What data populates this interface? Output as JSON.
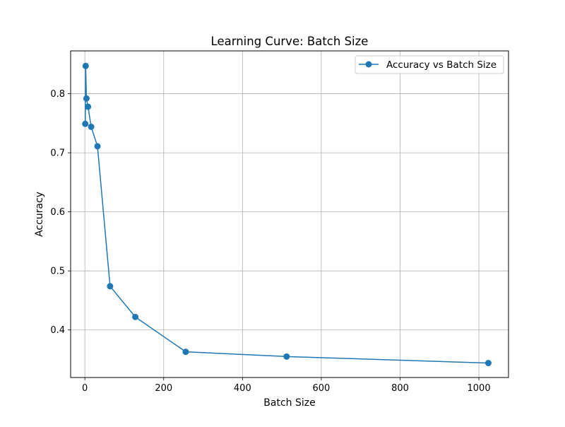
{
  "chart_data": {
    "type": "line",
    "title": "Learning Curve: Batch Size",
    "xlabel": "Batch Size",
    "ylabel": "Accuracy",
    "xlim": [
      -36.15,
      1075.15
    ],
    "ylim": [
      0.3195,
      0.8725
    ],
    "xticks": [
      0,
      200,
      400,
      600,
      800,
      1000
    ],
    "xtick_labels": [
      "0",
      "200",
      "400",
      "600",
      "800",
      "1000"
    ],
    "yticks": [
      0.4,
      0.5,
      0.6,
      0.7,
      0.8
    ],
    "ytick_labels": [
      "0.4",
      "0.5",
      "0.6",
      "0.7",
      "0.8"
    ],
    "grid": true,
    "legend_position": "top-right",
    "series": [
      {
        "name": "Accuracy vs Batch Size",
        "color": "#1f77b4",
        "marker": "circle",
        "x": [
          1,
          2,
          4,
          8,
          16,
          32,
          64,
          128,
          256,
          512,
          1024
        ],
        "y": [
          0.749,
          0.847,
          0.792,
          0.778,
          0.744,
          0.711,
          0.474,
          0.422,
          0.363,
          0.355,
          0.344
        ]
      }
    ]
  }
}
